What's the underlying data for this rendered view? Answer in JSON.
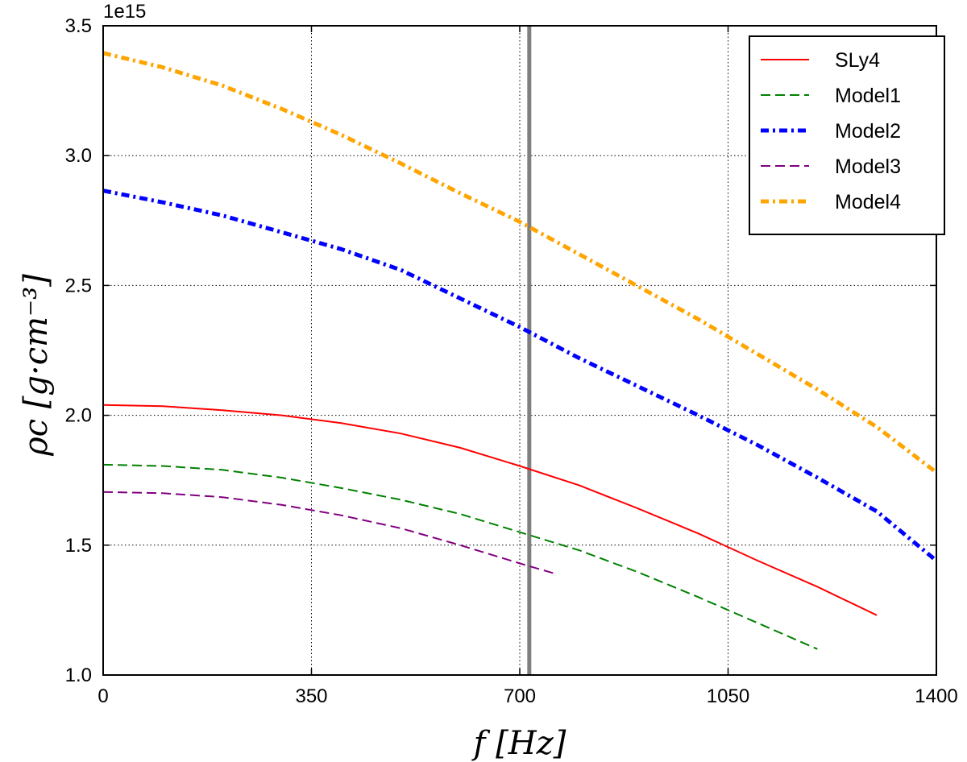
{
  "chart_data": {
    "type": "line",
    "xlabel": "f [Hz]",
    "ylabel": "ρc [g·cm⁻³]",
    "offset_text": "1e15",
    "xlim": [
      0,
      1400
    ],
    "ylim": [
      1.0,
      3.5
    ],
    "xticks": [
      0,
      350,
      700,
      1050,
      1400
    ],
    "xtick_labels": [
      "0",
      "350",
      "700",
      "1050",
      "1400"
    ],
    "yticks": [
      1.0,
      1.5,
      2.0,
      2.5,
      3.0,
      3.5
    ],
    "ytick_labels": [
      "1.0",
      "1.5",
      "2.0",
      "2.5",
      "3.0",
      "3.5"
    ],
    "grid": true,
    "legend_position": "top-right",
    "vertical_lines": [
      {
        "x": 700,
        "style": "dotted",
        "color": "#000000"
      },
      {
        "x": 716,
        "style": "solid",
        "color": "#808080"
      }
    ],
    "series": [
      {
        "name": "SLy4",
        "color": "#ff0000",
        "dash": "solid",
        "x": [
          0,
          100,
          200,
          300,
          400,
          500,
          600,
          700,
          800,
          900,
          1000,
          1100,
          1200,
          1300
        ],
        "y": [
          2.04,
          2.035,
          2.02,
          2.0,
          1.97,
          1.93,
          1.875,
          1.805,
          1.73,
          1.64,
          1.545,
          1.44,
          1.34,
          1.23
        ]
      },
      {
        "name": "Model1",
        "color": "#008000",
        "dash": "dashed",
        "x": [
          0,
          100,
          200,
          300,
          400,
          500,
          600,
          700,
          800,
          900,
          1000,
          1100,
          1200
        ],
        "y": [
          1.81,
          1.805,
          1.79,
          1.76,
          1.72,
          1.675,
          1.62,
          1.55,
          1.48,
          1.395,
          1.3,
          1.2,
          1.1
        ]
      },
      {
        "name": "Model2",
        "color": "#0000ff",
        "dash": "dashdot",
        "x": [
          0,
          100,
          200,
          300,
          400,
          500,
          600,
          700,
          800,
          900,
          1000,
          1100,
          1200,
          1300,
          1400
        ],
        "y": [
          2.865,
          2.82,
          2.77,
          2.705,
          2.64,
          2.56,
          2.45,
          2.34,
          2.22,
          2.11,
          2.0,
          1.885,
          1.76,
          1.63,
          1.44
        ]
      },
      {
        "name": "Model3",
        "color": "#800080",
        "dash": "dashed",
        "x": [
          0,
          100,
          200,
          300,
          400,
          500,
          600,
          700,
          760
        ],
        "y": [
          1.705,
          1.7,
          1.685,
          1.655,
          1.615,
          1.565,
          1.5,
          1.43,
          1.39
        ]
      },
      {
        "name": "Model4",
        "color": "#ffa500",
        "dash": "dashdot",
        "x": [
          0,
          100,
          200,
          300,
          400,
          500,
          600,
          700,
          800,
          900,
          1000,
          1100,
          1200,
          1300,
          1400
        ],
        "y": [
          3.395,
          3.34,
          3.27,
          3.18,
          3.08,
          2.97,
          2.855,
          2.745,
          2.62,
          2.495,
          2.37,
          2.235,
          2.1,
          1.955,
          1.78
        ]
      }
    ]
  }
}
